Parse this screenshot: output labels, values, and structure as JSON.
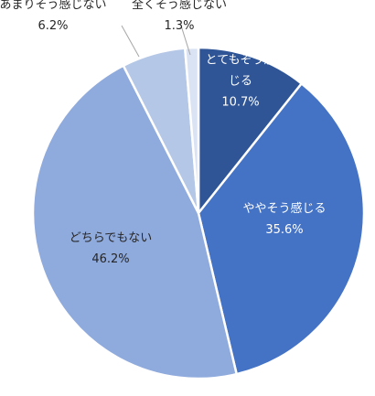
{
  "chart_data": {
    "type": "pie",
    "slices": [
      {
        "label_lines": [
          "とてもそう感",
          "じる"
        ],
        "value": 10.7,
        "value_label": "10.7%",
        "color": "#2F5597",
        "text_color": "#ffffff"
      },
      {
        "label_lines": [
          "ややそう感じる"
        ],
        "value": 35.6,
        "value_label": "35.6%",
        "color": "#4472C4",
        "text_color": "#ffffff"
      },
      {
        "label_lines": [
          "どちらでもない"
        ],
        "value": 46.2,
        "value_label": "46.2%",
        "color": "#8FAADC",
        "text_color": "#262626"
      },
      {
        "label_lines": [
          "あまりそう感じない"
        ],
        "value": 6.2,
        "value_label": "6.2%",
        "color": "#B4C7E7",
        "text_color": "#262626"
      },
      {
        "label_lines": [
          "全くそう感じない"
        ],
        "value": 1.3,
        "value_label": "1.3%",
        "color": "#DAE3F3",
        "text_color": "#262626"
      }
    ]
  }
}
